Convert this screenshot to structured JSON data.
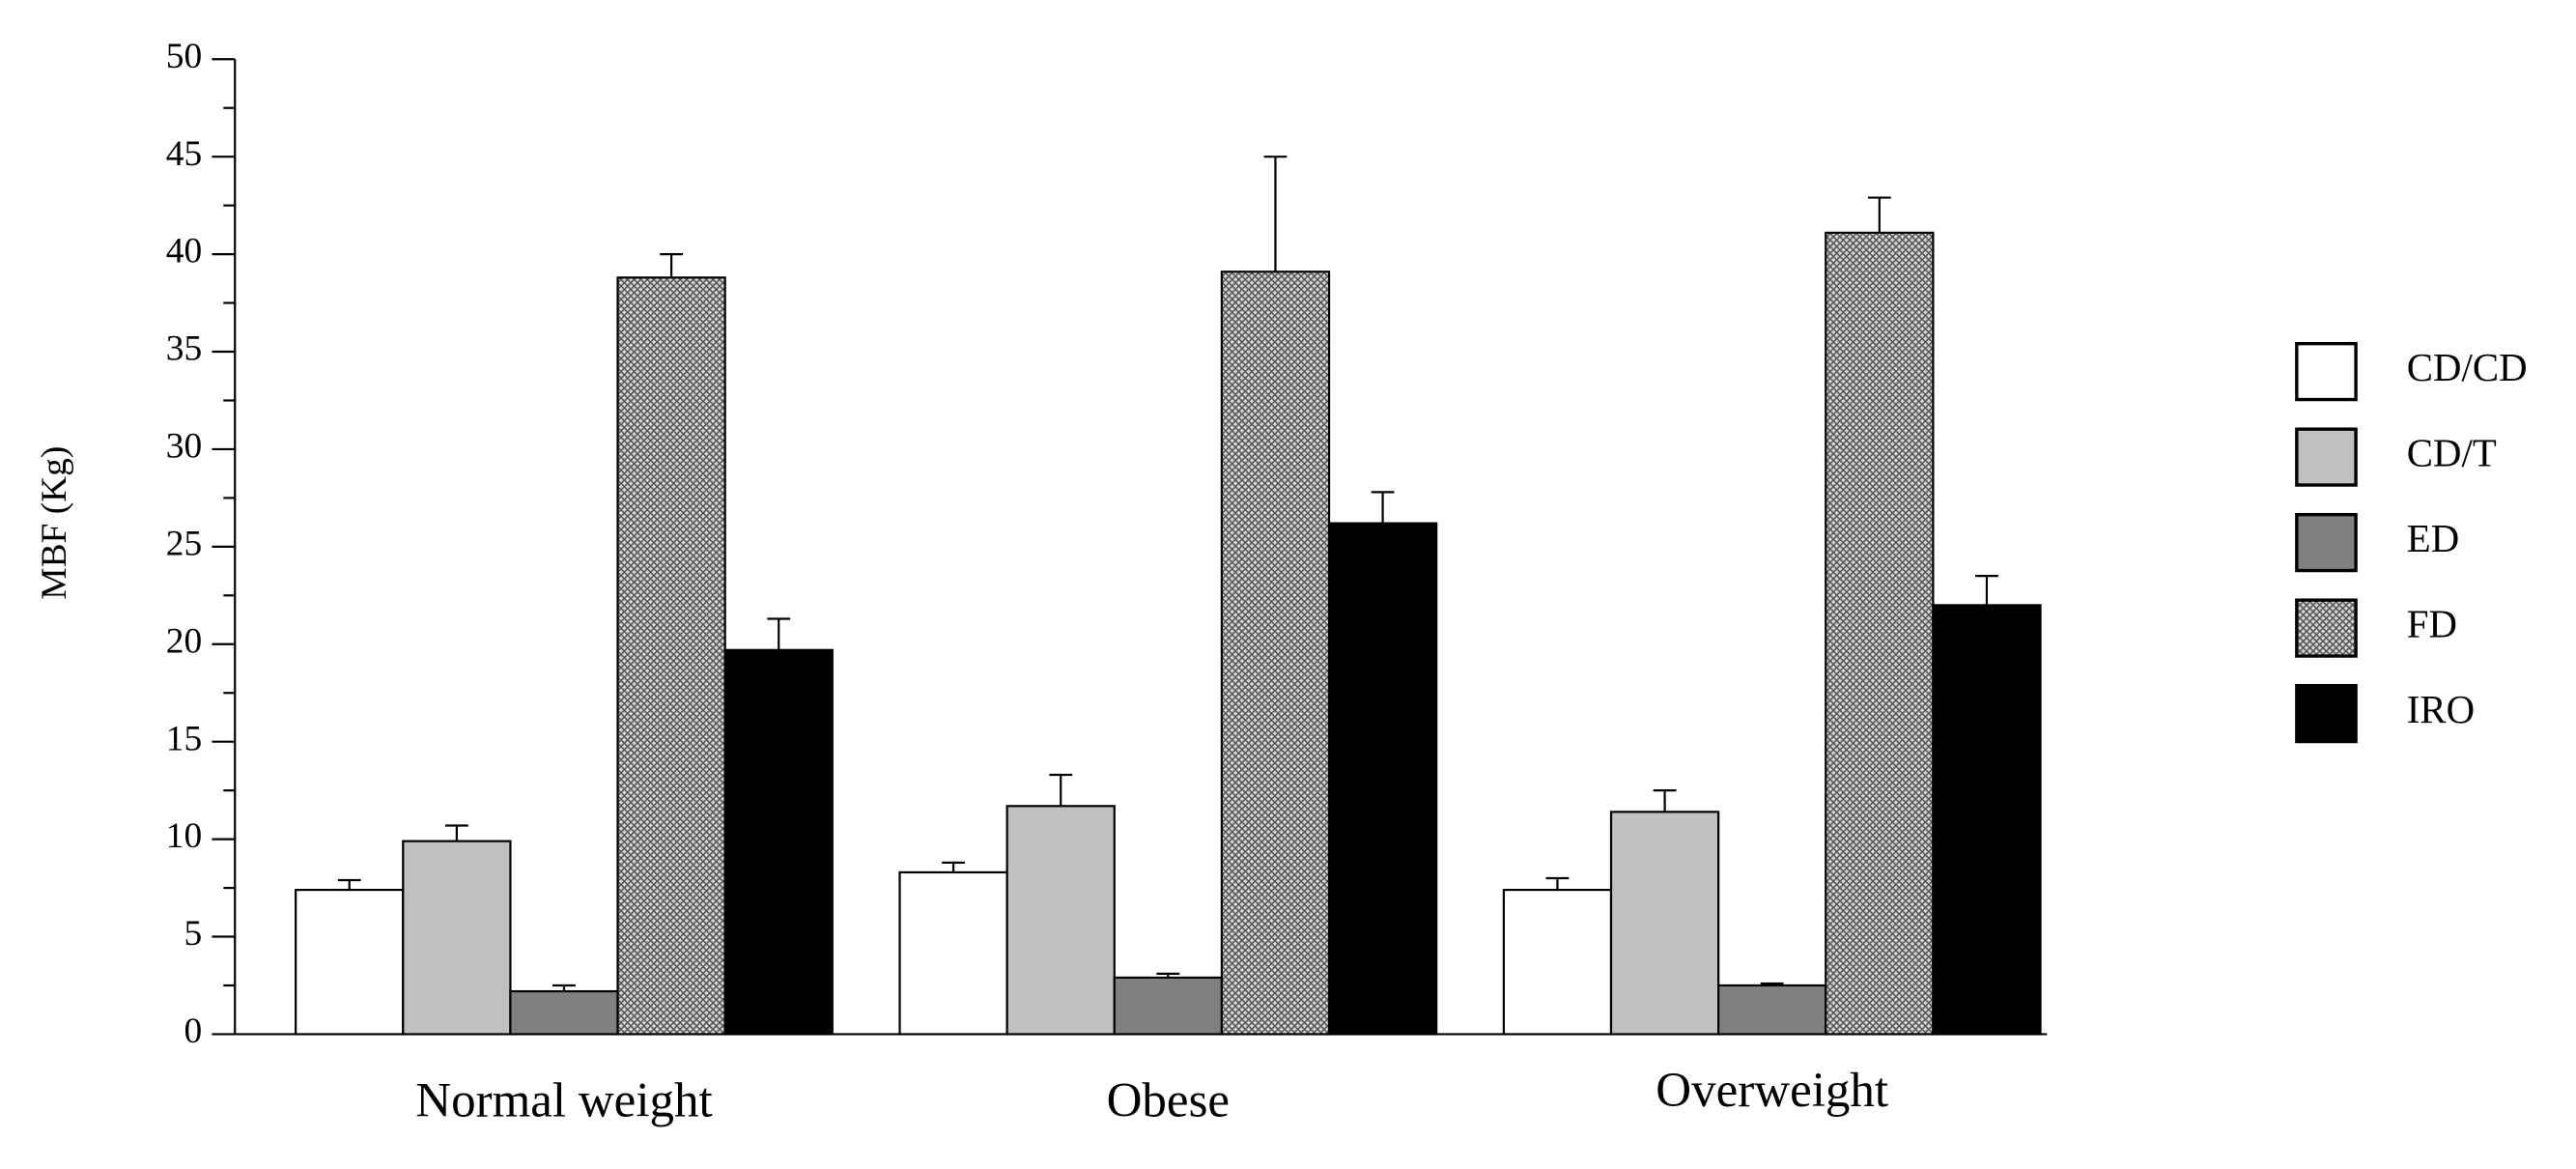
{
  "chart_data": {
    "type": "bar",
    "y_label": "MBF (Kg)",
    "categories": [
      "Normal weight",
      "Obese",
      "Overweight"
    ],
    "series": [
      {
        "name": "CD/CD",
        "color": "#ffffff",
        "values": [
          7.4,
          8.3,
          7.4
        ],
        "errors": [
          0.5,
          0.5,
          0.6
        ]
      },
      {
        "name": "CD/T",
        "color": "#c0c0c0",
        "values": [
          9.9,
          11.7,
          11.4
        ],
        "errors": [
          0.8,
          1.6,
          1.1
        ]
      },
      {
        "name": "ED",
        "color": "#808080",
        "values": [
          2.2,
          2.9,
          2.5
        ],
        "errors": [
          0.3,
          0.2,
          0.1
        ]
      },
      {
        "name": "FD",
        "color": "#9a9a9a",
        "pattern": "crosshatch",
        "values": [
          38.8,
          39.1,
          41.1
        ],
        "errors": [
          1.2,
          5.9,
          1.8
        ]
      },
      {
        "name": "IRO",
        "color": "#000000",
        "values": [
          19.7,
          26.2,
          22.0
        ],
        "errors": [
          1.6,
          1.6,
          1.5
        ]
      }
    ],
    "ylim": [
      0,
      50
    ],
    "yticks": [
      0,
      5,
      10,
      15,
      20,
      25,
      30,
      35,
      40,
      45,
      50
    ],
    "yticks_minor": [
      2.5,
      7.5,
      12.5,
      17.5,
      22.5,
      27.5,
      32.5,
      37.5,
      42.5,
      47.5
    ],
    "grid": false,
    "legend": "right"
  }
}
